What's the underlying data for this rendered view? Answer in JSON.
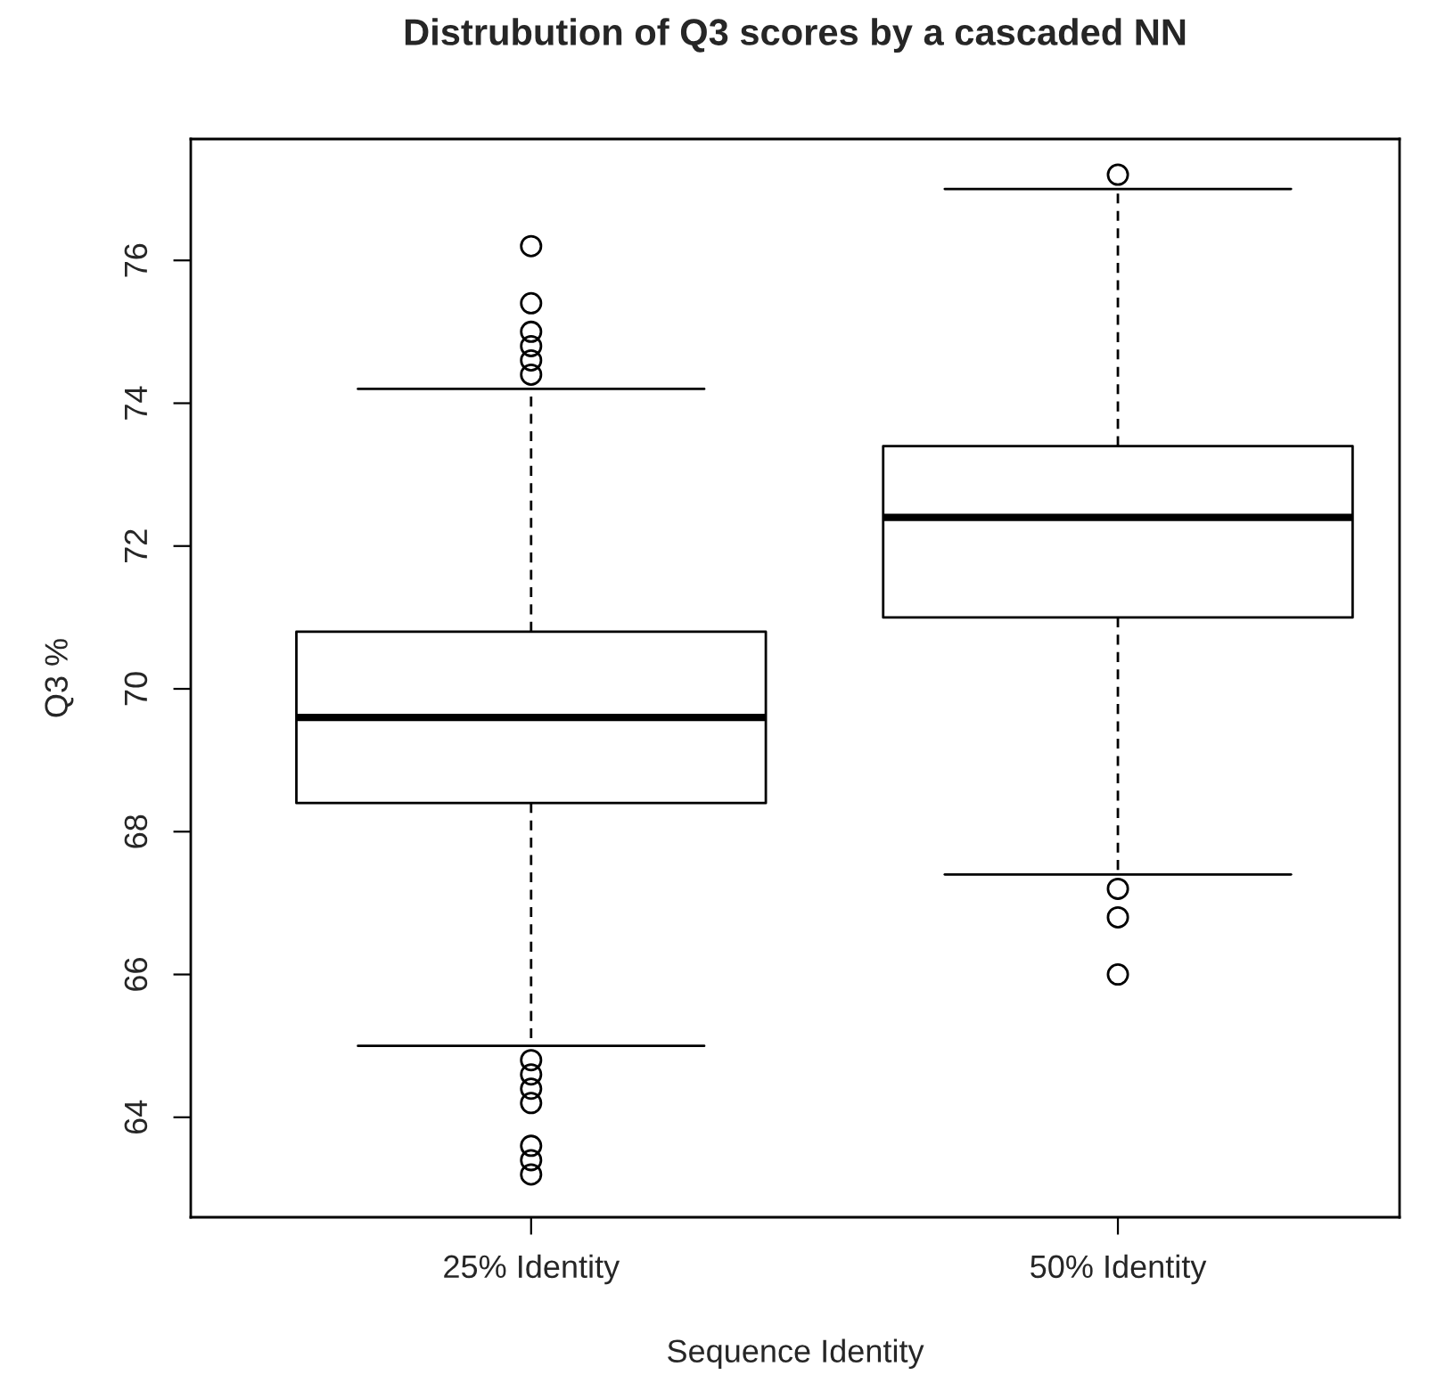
{
  "chart_data": {
    "type": "box",
    "title": "Distrubution of Q3 scores by a cascaded NN",
    "xlabel": "Sequence Identity",
    "ylabel": "Q3 %",
    "categories": [
      "25% Identity",
      "50% Identity"
    ],
    "boxes": [
      {
        "low": 65.0,
        "q1": 68.4,
        "median": 69.6,
        "q3": 70.8,
        "high": 74.2,
        "outliers": [
          76.2,
          75.4,
          75.0,
          74.8,
          74.6,
          74.4,
          64.8,
          64.6,
          64.4,
          64.2,
          63.6,
          63.4,
          63.2
        ]
      },
      {
        "low": 67.4,
        "q1": 71.0,
        "median": 72.4,
        "q3": 73.4,
        "high": 77.0,
        "outliers": [
          77.2,
          67.2,
          66.8,
          66.0
        ]
      }
    ],
    "ylim": [
      62.6,
      77.7
    ],
    "yticks": [
      64,
      66,
      68,
      70,
      72,
      74,
      76
    ],
    "grid": false,
    "marker": "circle"
  }
}
